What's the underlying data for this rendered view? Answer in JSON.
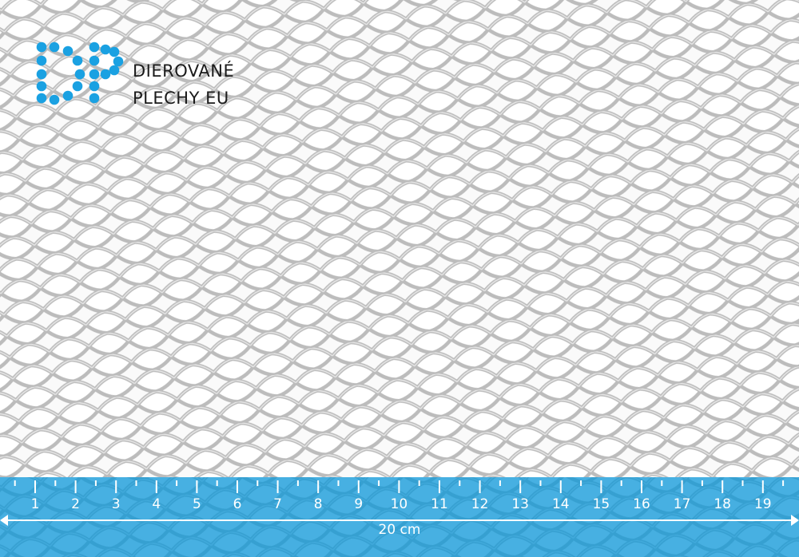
{
  "logo": {
    "line1": "DIEROVANÉ",
    "line2": "PLECHY EU",
    "dot_color": "#1aa1e2"
  },
  "ruler": {
    "color": "#0a96d8",
    "labels": [
      "1",
      "2",
      "3",
      "4",
      "5",
      "6",
      "7",
      "8",
      "9",
      "10",
      "11",
      "12",
      "13",
      "14",
      "15",
      "16",
      "17",
      "18",
      "19"
    ],
    "total_label": "20 cm"
  },
  "image": {
    "subject": "expanded-metal-mesh",
    "mesh_color": "#c4c4c4"
  }
}
